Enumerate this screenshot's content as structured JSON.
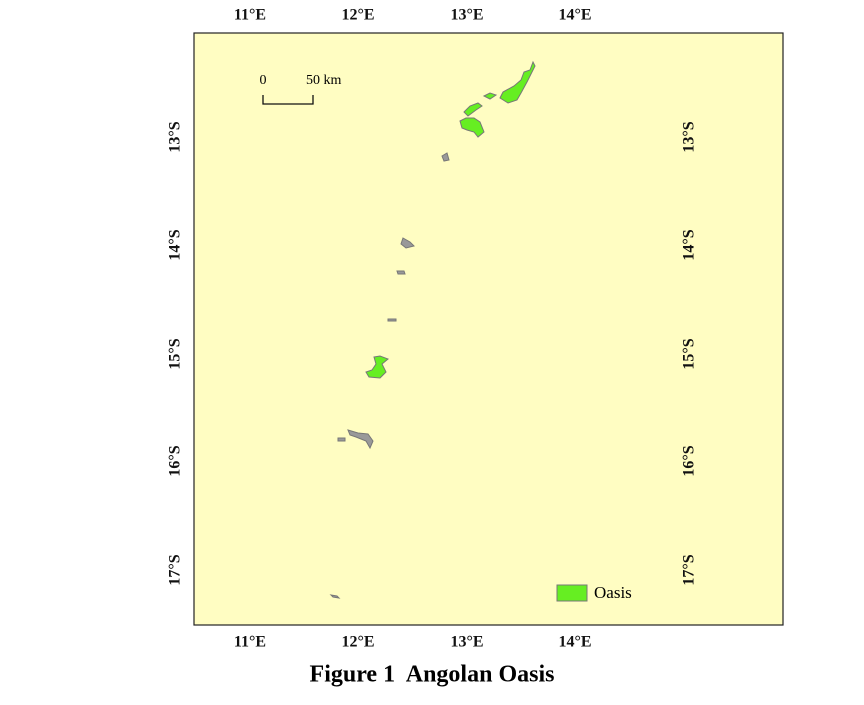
{
  "map": {
    "longitude_labels": [
      "11°E",
      "12°E",
      "13°E",
      "14°E"
    ],
    "latitude_labels": [
      "13°S",
      "14°S",
      "15°S",
      "16°S",
      "17°S"
    ],
    "scale_bar": {
      "start": "0",
      "end": "50 km"
    },
    "legend": {
      "label": "Oasis"
    }
  },
  "caption": "Figure 1  Angolan Oasis"
}
